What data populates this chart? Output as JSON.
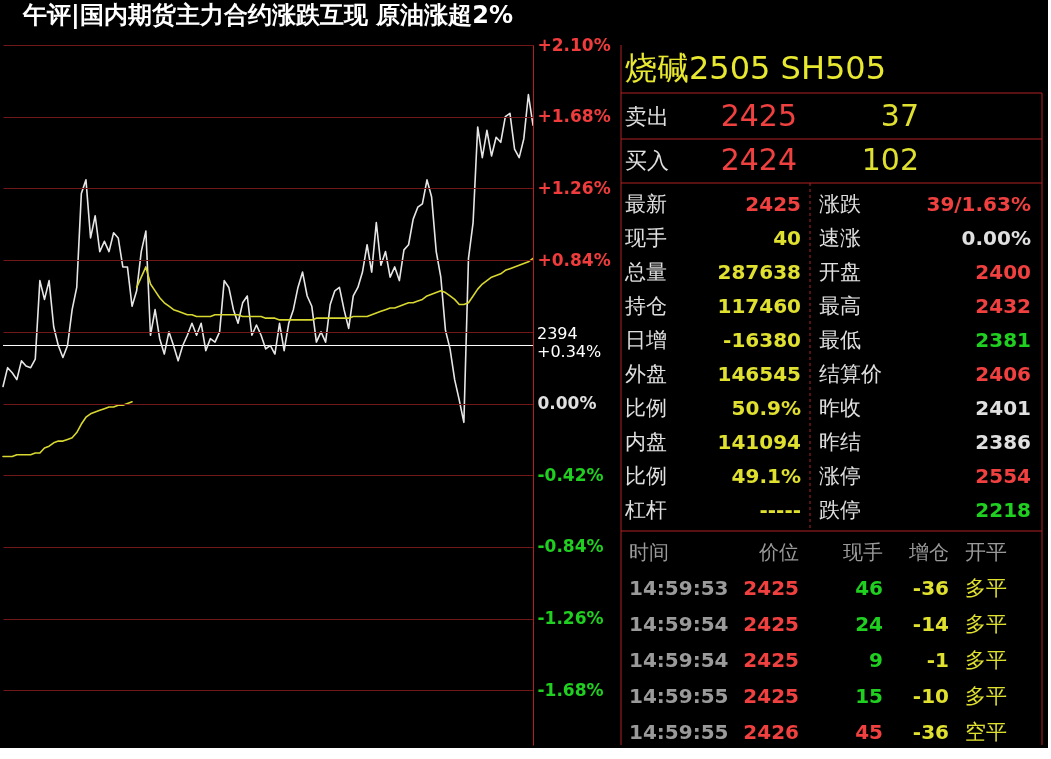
{
  "chart_data": [
    {
      "type": "line",
      "title": "午评|国内期货主力合约涨跌互现 原油涨超2%",
      "categories": [
        null,
        null,
        null,
        null,
        null,
        null,
        null,
        null,
        null,
        null,
        null,
        null,
        null,
        null,
        null,
        null,
        null,
        null,
        null,
        null,
        null,
        null,
        null,
        null,
        null,
        null,
        null,
        null,
        null,
        null,
        null,
        null,
        null,
        null,
        null,
        null,
        null,
        null,
        null,
        null,
        null,
        null,
        null,
        null,
        null,
        null,
        null,
        null,
        null,
        null,
        null,
        null,
        null,
        null,
        null,
        null,
        null,
        null,
        null,
        null,
        null,
        null,
        null,
        null,
        null,
        null,
        null,
        null,
        null,
        null,
        null,
        null,
        null,
        null,
        null,
        null,
        null,
        null,
        null,
        null,
        null,
        null,
        null,
        null,
        null,
        null,
        null,
        null,
        null,
        null,
        null,
        null,
        null,
        null,
        null,
        null,
        null,
        null,
        null,
        null,
        null,
        null,
        null,
        null,
        null,
        null,
        null,
        null,
        null,
        null,
        null,
        null,
        null,
        null,
        null,
        null
      ],
      "ylim": [
        -2.0,
        2.1
      ],
      "yticks": [
        {
          "value": 2.1,
          "label": "+2.10%"
        },
        {
          "value": 1.68,
          "label": "+1.68%"
        },
        {
          "value": 1.26,
          "label": "+1.26%"
        },
        {
          "value": 0.84,
          "label": "+0.84%"
        },
        {
          "value": 0.42,
          "label": null
        },
        {
          "value": 0,
          "label": "0.00%"
        },
        {
          "value": -0.42,
          "label": "-0.42%"
        },
        {
          "value": -0.84,
          "label": "-0.84%"
        },
        {
          "value": -1.26,
          "label": "-1.26%"
        },
        {
          "value": -1.68,
          "label": "-1.68%"
        }
      ],
      "tick_labels": "y",
      "grid": "y",
      "ref_lines": [
        {
          "axis": "y",
          "value": 0.34,
          "label": "2394\n+0.34%",
          "color": "#ffffff"
        }
      ],
      "series": [
        {
          "color": "#e6e6e6",
          "values": [
            0.1,
            0.21,
            0.18,
            0.14,
            0.25,
            0.22,
            0.21,
            0.26,
            0.72,
            0.61,
            0.72,
            0.45,
            0.34,
            0.27,
            0.34,
            0.55,
            0.68,
            1.23,
            1.31,
            0.97,
            1.1,
            0.89,
            0.95,
            0.89,
            1.0,
            0.97,
            0.8,
            0.8,
            0.57,
            0.66,
            0.89,
            1.01,
            0.4,
            0.55,
            0.38,
            0.29,
            0.42,
            0.34,
            0.25,
            0.34,
            0.4,
            0.47,
            0.4,
            0.47,
            0.31,
            0.38,
            0.36,
            0.42,
            0.72,
            0.68,
            0.55,
            0.47,
            0.59,
            0.63,
            0.4,
            0.46,
            0.4,
            0.32,
            0.34,
            0.29,
            0.47,
            0.31,
            0.47,
            0.55,
            0.68,
            0.77,
            0.63,
            0.57,
            0.36,
            0.42,
            0.36,
            0.58,
            0.66,
            0.68,
            0.55,
            0.44,
            0.63,
            0.68,
            0.77,
            0.93,
            0.77,
            1.06,
            0.81,
            0.89,
            0.74,
            0.8,
            0.72,
            0.9,
            0.93,
            1.08,
            1.15,
            1.17,
            1.31,
            1.21,
            0.89,
            0.74,
            0.43,
            0.32,
            0.14,
            0.02,
            -0.11,
            0.85,
            1.06,
            1.62,
            1.44,
            1.6,
            1.45,
            1.56,
            1.53,
            1.68,
            1.7,
            1.49,
            1.44,
            1.55,
            1.81,
            1.63
          ]
        },
        {
          "color": "#d8d830",
          "values": [
            -0.31,
            -0.31,
            -0.31,
            -0.3,
            -0.3,
            -0.3,
            -0.3,
            -0.29,
            -0.29,
            -0.26,
            -0.25,
            -0.23,
            -0.22,
            -0.22,
            -0.21,
            -0.2,
            -0.17,
            -0.12,
            -0.08,
            -0.06,
            -0.05,
            -0.04,
            -0.03,
            -0.02,
            -0.02,
            -0.01,
            -0.01,
            0.0,
            0.01,
            null,
            null,
            null,
            null,
            null,
            null,
            null,
            null,
            null,
            null,
            null,
            null,
            null,
            null,
            null,
            null,
            null,
            null,
            null,
            null,
            null,
            null,
            null,
            null,
            null,
            null,
            null,
            null,
            null,
            null,
            null,
            null,
            null,
            null,
            null,
            null,
            null,
            null,
            null,
            null,
            null,
            null,
            null,
            null,
            null,
            null,
            null,
            null,
            null,
            null,
            null,
            null,
            null,
            null,
            null,
            null,
            null,
            null,
            null,
            null,
            null,
            null,
            null,
            null,
            null,
            null,
            null,
            null,
            null,
            null,
            null,
            null,
            null,
            null,
            null,
            null,
            null,
            null,
            null,
            null,
            null,
            null,
            null,
            null,
            null,
            null,
            null
          ]
        },
        {
          "color": "#d8d830",
          "values": [
            null,
            null,
            null,
            null,
            null,
            null,
            null,
            null,
            null,
            null,
            null,
            null,
            null,
            null,
            null,
            null,
            null,
            null,
            null,
            null,
            null,
            null,
            null,
            null,
            null,
            null,
            null,
            null,
            null,
            0.68,
            0.74,
            0.8,
            0.7,
            0.66,
            0.62,
            0.59,
            0.57,
            0.55,
            0.54,
            0.53,
            0.52,
            0.52,
            0.51,
            0.51,
            0.51,
            0.51,
            0.52,
            0.52,
            0.52,
            0.52,
            0.52,
            0.52,
            0.51,
            0.51,
            0.51,
            0.51,
            0.51,
            0.5,
            0.5,
            0.5,
            0.49,
            0.49,
            0.49,
            0.49,
            0.49,
            0.49,
            0.49,
            0.49,
            0.5,
            0.5,
            0.5,
            0.5,
            0.5,
            0.5,
            0.5,
            0.5,
            0.51,
            0.51,
            0.51,
            0.51,
            0.52,
            0.53,
            0.54,
            0.55,
            0.56,
            0.56,
            0.57,
            0.58,
            0.59,
            0.59,
            0.6,
            0.61,
            0.63,
            0.64,
            0.65,
            0.66,
            0.65,
            0.63,
            0.61,
            0.58,
            0.58,
            0.59,
            0.63,
            0.67,
            0.7,
            0.72,
            0.74,
            0.75,
            0.76,
            0.78,
            0.79,
            0.8,
            0.81,
            0.82,
            0.83,
            0.85
          ]
        }
      ]
    },
    {
      "type": "other",
      "title": "烧碱2505 SH505",
      "annotations": [
        "卖出",
        "2425",
        "37",
        "买入",
        "2424",
        "102",
        "最新",
        "2425",
        "涨跌",
        "39/1.63%",
        "现手",
        "40",
        "速涨",
        "0.00%",
        "总量",
        "287638",
        "开盘",
        "2400",
        "持仓",
        "117460",
        "最高",
        "2432",
        "日增",
        "-16380",
        "最低",
        "2381",
        "外盘",
        "146545",
        "结算价",
        "2406",
        "比例",
        "50.9%",
        "昨收",
        "2401",
        "内盘",
        "141094",
        "昨结",
        "2386",
        "比例",
        "49.1%",
        "涨停",
        "2554",
        "杠杆",
        "-----",
        "跌停",
        "2218",
        "时间",
        "价位",
        "现手",
        "增仓",
        "开平",
        "14:59:53",
        "2425",
        "46",
        "-36",
        "多平",
        "14:59:54",
        "2425",
        "24",
        "-14",
        "多平",
        "14:59:54",
        "2425",
        "9",
        "-1",
        "多平",
        "14:59:55",
        "2425",
        "15",
        "-10",
        "多平",
        "14:59:55",
        "2426",
        "45",
        "-36",
        "空平"
      ],
      "colors": [
        "#e0e0e0",
        "#f04040",
        "#e0e030",
        "#e0e0e0",
        "#f04040",
        "#e0e030",
        "#e0e0e0",
        "#f04040",
        "#e0e0e0",
        "#f04040",
        "#e0e0e0",
        "#e0e030",
        "#e0e0e0",
        "#e0e0e0",
        "#e0e0e0",
        "#e0e030",
        "#e0e0e0",
        "#f04040",
        "#e0e0e0",
        "#e0e030",
        "#e0e0e0",
        "#f04040",
        "#e0e0e0",
        "#e0e030",
        "#e0e0e0",
        "#20d020",
        "#e0e0e0",
        "#e0e030",
        "#e0e0e0",
        "#f04040",
        "#e0e0e0",
        "#e0e030",
        "#e0e0e0",
        "#e0e0e0",
        "#e0e0e0",
        "#e0e030",
        "#e0e0e0",
        "#e0e0e0",
        "#e0e0e0",
        "#e0e030",
        "#e0e0e0",
        "#f04040",
        "#e0e0e0",
        "#e0e030",
        "#e0e0e0",
        "#20d020",
        "#9a9a9a",
        "#9a9a9a",
        "#9a9a9a",
        "#9a9a9a",
        "#9a9a9a",
        "#9a9a9a",
        "#f04040",
        "#20d020",
        "#e0e030",
        "#e0e030",
        "#9a9a9a",
        "#f04040",
        "#20d020",
        "#e0e030",
        "#e0e030",
        "#9a9a9a",
        "#f04040",
        "#20d020",
        "#e0e030",
        "#e0e030",
        "#9a9a9a",
        "#f04040",
        "#20d020",
        "#e0e030",
        "#e0e030",
        "#9a9a9a",
        "#f04040",
        "#f04040",
        "#e0e030",
        "#e0e030"
      ]
    }
  ]
}
